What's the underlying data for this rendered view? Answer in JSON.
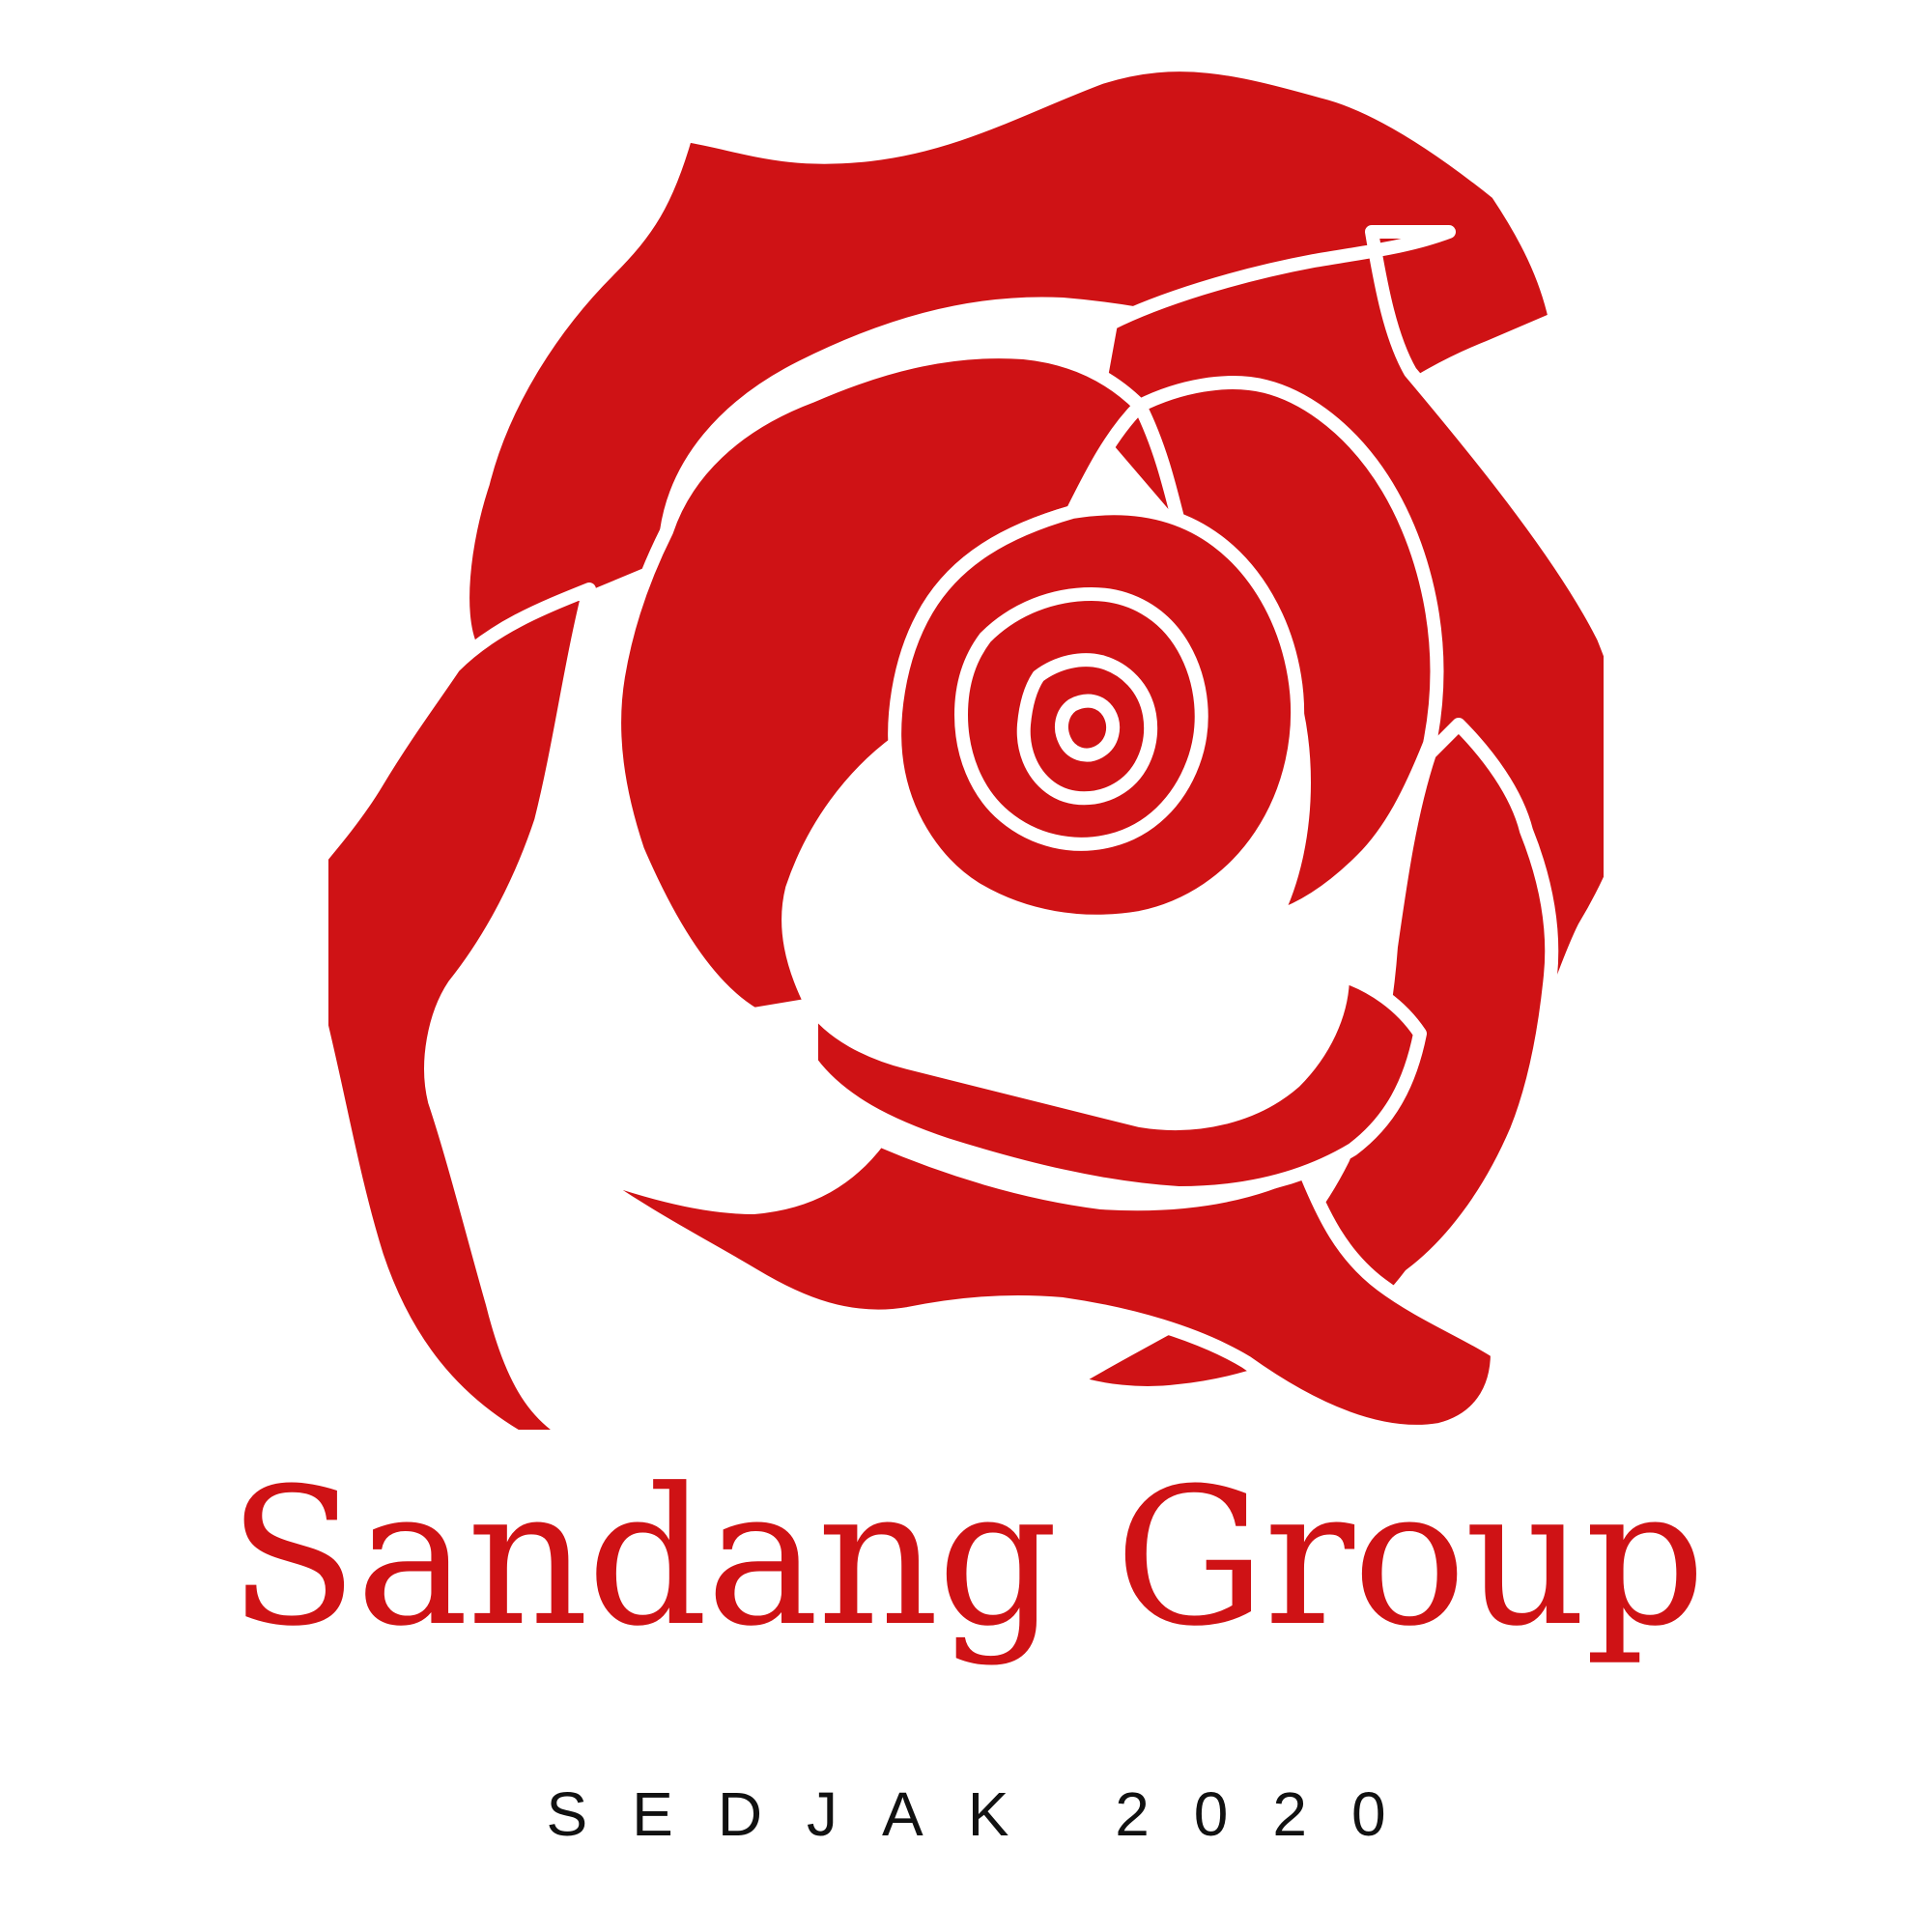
{
  "logo": {
    "icon": "rose-icon",
    "brand_name": "Sandang Group",
    "tagline": "SEDJAK 2020"
  },
  "colors": {
    "brand_red": "#cf1215",
    "text_dark": "#111111",
    "background": "#ffffff"
  }
}
